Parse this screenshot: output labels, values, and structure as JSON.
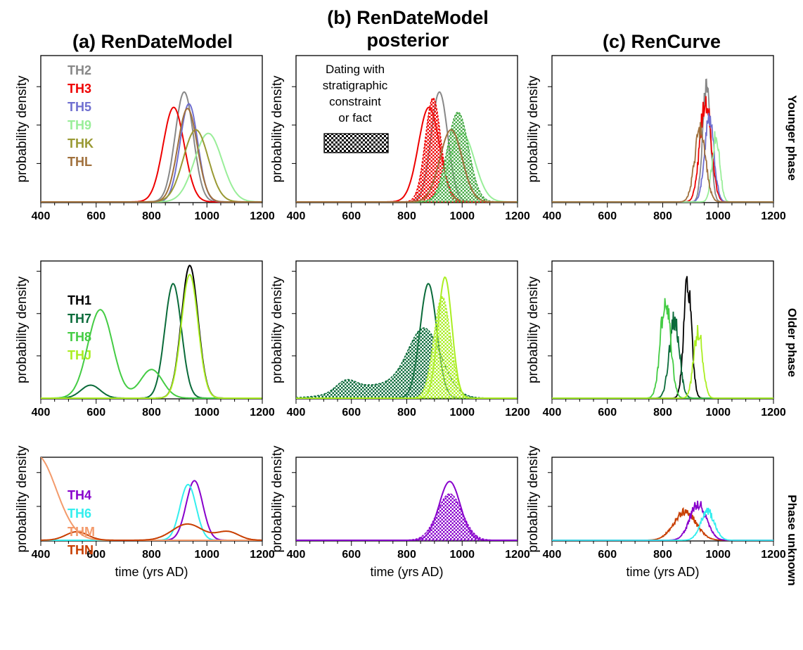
{
  "figure": {
    "column_titles": [
      "(a) RenDateModel",
      "(b) RenDateModel posterior",
      "(c) RenCurve"
    ],
    "row_titles": [
      "Younger phase",
      "Older phase",
      "Phase unknown"
    ],
    "ylabel": "probability density",
    "xlabel": "time (yrs AD)",
    "annotation": "Dating with stratigraphic constraint or fact"
  },
  "chart_data": [
    {
      "type": "line",
      "panel": "a-younger",
      "xlim": [
        400,
        1200
      ],
      "xticks": [
        400,
        600,
        800,
        1000,
        1200
      ],
      "ylabel": "probability density",
      "legend": "top-left",
      "series": [
        {
          "name": "TH2",
          "color": "#888888",
          "style": "normal",
          "mu": 918,
          "sd": 33,
          "peak": 0.93
        },
        {
          "name": "TH3",
          "color": "#ee0000",
          "style": "normal",
          "mu": 880,
          "sd": 38,
          "peak": 0.8
        },
        {
          "name": "TH5",
          "color": "#6f6fd0",
          "style": "normal",
          "mu": 935,
          "sd": 32,
          "peak": 0.83
        },
        {
          "name": "TH9",
          "color": "#99ee99",
          "style": "normal",
          "mu": 1005,
          "sd": 50,
          "peak": 0.58
        },
        {
          "name": "THK",
          "color": "#999933",
          "style": "normal",
          "mu": 960,
          "sd": 45,
          "peak": 0.61
        },
        {
          "name": "THL",
          "color": "#a0703c",
          "style": "normal",
          "mu": 930,
          "sd": 35,
          "peak": 0.79
        }
      ]
    },
    {
      "type": "line",
      "panel": "b-younger",
      "xlim": [
        400,
        1200
      ],
      "xticks": [
        400,
        600,
        800,
        1000,
        1200
      ],
      "ylabel": "probability density",
      "legend": "none",
      "series": [
        {
          "color": "#888888",
          "style": "normal",
          "mu": 918,
          "sd": 30,
          "peak": 0.93
        },
        {
          "color": "#ee0000",
          "style": "normal",
          "mu": 880,
          "sd": 38,
          "peak": 0.8
        },
        {
          "color": "#ee0000",
          "style": "filled",
          "mu": 895,
          "sd": 28,
          "peak": 0.88
        },
        {
          "color": "#99ee99",
          "style": "normal",
          "mu": 1000,
          "sd": 45,
          "peak": 0.58
        },
        {
          "color": "#44aa44",
          "style": "filled",
          "mu": 985,
          "sd": 38,
          "peak": 0.76
        },
        {
          "color": "#a0703c",
          "style": "normal",
          "mu": 960,
          "sd": 40,
          "peak": 0.61
        }
      ]
    },
    {
      "type": "line",
      "panel": "c-younger",
      "xlim": [
        400,
        1200
      ],
      "xticks": [
        400,
        600,
        800,
        1000,
        1200
      ],
      "ylabel": "probability density",
      "legend": "none",
      "series": [
        {
          "color": "#888888",
          "style": "noisy",
          "mu": 958,
          "sd": 14,
          "peak": 1.0
        },
        {
          "color": "#ee0000",
          "style": "noisy",
          "mu": 955,
          "sd": 20,
          "peak": 0.88
        },
        {
          "color": "#6f6fd0",
          "style": "noisy",
          "mu": 968,
          "sd": 17,
          "peak": 0.7
        },
        {
          "color": "#99ee99",
          "style": "noisy",
          "mu": 992,
          "sd": 14,
          "peak": 0.56
        },
        {
          "color": "#a0703c",
          "style": "noisy",
          "mu": 935,
          "sd": 20,
          "peak": 0.6
        }
      ]
    },
    {
      "type": "line",
      "panel": "a-older",
      "xlim": [
        400,
        1200
      ],
      "xticks": [
        400,
        600,
        800,
        1000,
        1200
      ],
      "ylabel": "probability density",
      "legend": "top-left",
      "series": [
        {
          "name": "TH1",
          "color": "#000000",
          "style": "normal",
          "mu": 938,
          "sd": 30,
          "peak": 1.02
        },
        {
          "name": "TH7",
          "color": "#0a6b3a",
          "style": "normal",
          "mu": 878,
          "sd": 30,
          "peak": 0.88,
          "extra": [
            [
              580,
              35,
              0.1
            ]
          ]
        },
        {
          "name": "TH8",
          "color": "#44cc44",
          "style": "normal",
          "mu": 800,
          "sd": 40,
          "peak": 0.22,
          "extra": [
            [
              615,
              45,
              0.68
            ]
          ]
        },
        {
          "name": "THJ",
          "color": "#aaee22",
          "style": "normal",
          "mu": 938,
          "sd": 30,
          "peak": 0.95
        }
      ]
    },
    {
      "type": "line",
      "panel": "b-older",
      "xlim": [
        400,
        1200
      ],
      "xticks": [
        400,
        600,
        800,
        1000,
        1200
      ],
      "ylabel": "probability density",
      "legend": "none",
      "series": [
        {
          "color": "#0a6b3a",
          "style": "normal",
          "mu": 878,
          "sd": 30,
          "peak": 0.88
        },
        {
          "color": "#0a6b3a",
          "style": "filled",
          "mu": 865,
          "sd": 60,
          "peak": 0.5,
          "extra": [
            [
              580,
              35,
              0.08
            ],
            [
              700,
              120,
              0.1
            ]
          ]
        },
        {
          "color": "#aaee22",
          "style": "normal",
          "mu": 938,
          "sd": 25,
          "peak": 0.93
        },
        {
          "color": "#aaee22",
          "style": "filled",
          "mu": 928,
          "sd": 30,
          "peak": 0.78
        }
      ]
    },
    {
      "type": "line",
      "panel": "c-older",
      "xlim": [
        400,
        1200
      ],
      "xticks": [
        400,
        600,
        800,
        1000,
        1200
      ],
      "ylabel": "probability density",
      "legend": "none",
      "series": [
        {
          "color": "#000000",
          "style": "noisy",
          "mu": 890,
          "sd": 14,
          "peak": 0.89
        },
        {
          "color": "#0a6b3a",
          "style": "noisy",
          "mu": 842,
          "sd": 18,
          "peak": 0.6
        },
        {
          "color": "#44cc44",
          "style": "noisy",
          "mu": 810,
          "sd": 18,
          "peak": 0.77
        },
        {
          "color": "#aaee22",
          "style": "noisy",
          "mu": 928,
          "sd": 16,
          "peak": 0.52
        }
      ]
    },
    {
      "type": "line",
      "panel": "a-unknown",
      "xlim": [
        400,
        1200
      ],
      "xticks": [
        400,
        600,
        800,
        1000,
        1200
      ],
      "ylabel": "probability density",
      "legend": "top-left",
      "series": [
        {
          "name": "TH4",
          "color": "#8800cc",
          "style": "normal",
          "mu": 955,
          "sd": 30,
          "peak": 0.77
        },
        {
          "name": "TH6",
          "color": "#33eeee",
          "style": "normal",
          "mu": 932,
          "sd": 29,
          "peak": 0.72
        },
        {
          "name": "THM",
          "color": "#f39a6b",
          "style": "normal",
          "mu": 385,
          "sd": 70,
          "peak": 1.1
        },
        {
          "name": "THN",
          "color": "#c83e00",
          "style": "normal",
          "mu": 930,
          "sd": 55,
          "peak": 0.21,
          "extra": [
            [
              530,
              40,
              0.11
            ],
            [
              1075,
              40,
              0.11
            ]
          ]
        }
      ]
    },
    {
      "type": "line",
      "panel": "b-unknown",
      "xlim": [
        400,
        1200
      ],
      "xticks": [
        400,
        600,
        800,
        1000,
        1200
      ],
      "ylabel": "probability density",
      "legend": "none",
      "series": [
        {
          "color": "#8800cc",
          "style": "normal",
          "mu": 955,
          "sd": 38,
          "peak": 0.76
        },
        {
          "color": "#8800cc",
          "style": "filled",
          "mu": 955,
          "sd": 45,
          "peak": 0.6
        }
      ]
    },
    {
      "type": "line",
      "panel": "c-unknown",
      "xlim": [
        400,
        1200
      ],
      "xticks": [
        400,
        600,
        800,
        1000,
        1200
      ],
      "ylabel": "probability density",
      "legend": "none",
      "series": [
        {
          "color": "#c83e00",
          "style": "noisy",
          "mu": 880,
          "sd": 40,
          "peak": 0.37
        },
        {
          "color": "#8800cc",
          "style": "noisy",
          "mu": 928,
          "sd": 30,
          "peak": 0.47
        },
        {
          "color": "#33eeee",
          "style": "noisy",
          "mu": 962,
          "sd": 25,
          "peak": 0.37
        }
      ]
    }
  ]
}
